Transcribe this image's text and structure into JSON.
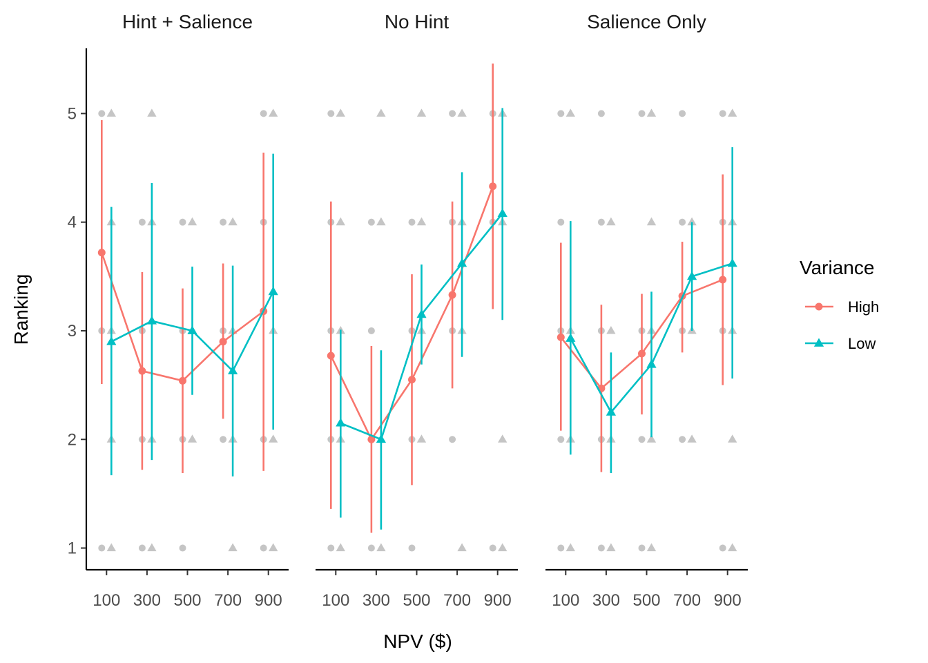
{
  "chart_data": {
    "type": "scatter",
    "subtype": "faceted line with error bars and jittered raw points",
    "xlabel": "NPV ($)",
    "ylabel": "Ranking",
    "x_ticks": [
      100,
      300,
      500,
      700,
      900
    ],
    "y_ticks": [
      1,
      2,
      3,
      4,
      5
    ],
    "xlim": [
      0,
      1000
    ],
    "ylim": [
      0.8,
      5.6
    ],
    "grid": false,
    "legend": {
      "title": "Variance",
      "position": "right",
      "entries": [
        {
          "name": "High",
          "color": "#F8766D",
          "shape": "circle"
        },
        {
          "name": "Low",
          "color": "#00BFC4",
          "shape": "triangle"
        }
      ]
    },
    "facets": [
      {
        "title": "Hint + Salience",
        "series": [
          {
            "name": "High",
            "x": [
              100,
              300,
              500,
              700,
              900
            ],
            "y": [
              3.72,
              2.63,
              2.54,
              2.9,
              3.18
            ],
            "ymin": [
              2.51,
              1.72,
              1.69,
              2.19,
              1.71
            ],
            "ymax": [
              4.94,
              3.54,
              3.39,
              3.62,
              4.64
            ]
          },
          {
            "name": "Low",
            "x": [
              100,
              300,
              500,
              700,
              900
            ],
            "y": [
              2.9,
              3.09,
              3.0,
              2.63,
              3.36
            ],
            "ymin": [
              1.67,
              1.81,
              2.41,
              1.66,
              2.09
            ],
            "ymax": [
              4.14,
              4.36,
              3.59,
              3.6,
              4.63
            ]
          }
        ],
        "raw_points": {
          "High": {
            "100": [
              1,
              3,
              5
            ],
            "300": [
              1,
              2,
              3,
              4
            ],
            "500": [
              1,
              2,
              3,
              4
            ],
            "700": [
              2,
              3,
              4
            ],
            "900": [
              1,
              2,
              4,
              5
            ]
          },
          "Low": {
            "100": [
              1,
              2,
              3,
              4,
              5
            ],
            "300": [
              1,
              2,
              4,
              5
            ],
            "500": [
              2,
              3,
              4
            ],
            "700": [
              1,
              2,
              3,
              4
            ],
            "900": [
              1,
              2,
              3,
              5
            ]
          }
        }
      },
      {
        "title": "No Hint",
        "series": [
          {
            "name": "High",
            "x": [
              100,
              300,
              500,
              700,
              900
            ],
            "y": [
              2.77,
              2.0,
              2.55,
              3.33,
              4.33
            ],
            "ymin": [
              1.36,
              1.14,
              1.58,
              2.47,
              3.2
            ],
            "ymax": [
              4.19,
              2.86,
              3.52,
              4.19,
              5.46
            ]
          },
          {
            "name": "Low",
            "x": [
              100,
              300,
              500,
              700,
              900
            ],
            "y": [
              2.15,
              2.0,
              3.15,
              3.62,
              4.08
            ],
            "ymin": [
              1.28,
              1.17,
              2.69,
              2.76,
              3.1
            ],
            "ymax": [
              3.01,
              2.82,
              3.61,
              4.46,
              5.05
            ]
          }
        ],
        "raw_points": {
          "High": {
            "100": [
              1,
              2,
              3,
              4,
              5
            ],
            "300": [
              1,
              3,
              4
            ],
            "500": [
              1,
              2,
              3,
              4
            ],
            "700": [
              2,
              3,
              4,
              5
            ],
            "900": [
              1,
              4,
              5
            ]
          },
          "Low": {
            "100": [
              1,
              2,
              3,
              4,
              5
            ],
            "300": [
              1,
              2,
              4,
              5
            ],
            "500": [
              2,
              3,
              4,
              5
            ],
            "700": [
              1,
              3,
              4,
              5
            ],
            "900": [
              1,
              2,
              4,
              5
            ]
          }
        }
      },
      {
        "title": "Salience Only",
        "series": [
          {
            "name": "High",
            "x": [
              100,
              300,
              500,
              700,
              900
            ],
            "y": [
              2.94,
              2.47,
              2.79,
              3.32,
              3.47
            ],
            "ymin": [
              2.08,
              1.7,
              2.23,
              2.8,
              2.5
            ],
            "ymax": [
              3.81,
              3.24,
              3.34,
              3.82,
              4.44
            ]
          },
          {
            "name": "Low",
            "x": [
              100,
              300,
              500,
              700,
              900
            ],
            "y": [
              2.93,
              2.25,
              2.69,
              3.5,
              3.62
            ],
            "ymin": [
              1.86,
              1.69,
              2.02,
              3.0,
              2.56
            ],
            "ymax": [
              4.01,
              2.8,
              3.36,
              4.0,
              4.69
            ]
          }
        ],
        "raw_points": {
          "High": {
            "100": [
              1,
              2,
              3,
              4,
              5
            ],
            "300": [
              1,
              2,
              3,
              4,
              5
            ],
            "500": [
              1,
              2,
              3,
              5
            ],
            "700": [
              2,
              3,
              4,
              5
            ],
            "900": [
              1,
              3,
              4,
              5
            ]
          },
          "Low": {
            "100": [
              1,
              2,
              3,
              5
            ],
            "300": [
              1,
              2,
              3,
              4
            ],
            "500": [
              1,
              2,
              3,
              4,
              5
            ],
            "700": [
              2,
              3,
              4
            ],
            "900": [
              1,
              2,
              3,
              4,
              5
            ]
          }
        }
      }
    ]
  }
}
